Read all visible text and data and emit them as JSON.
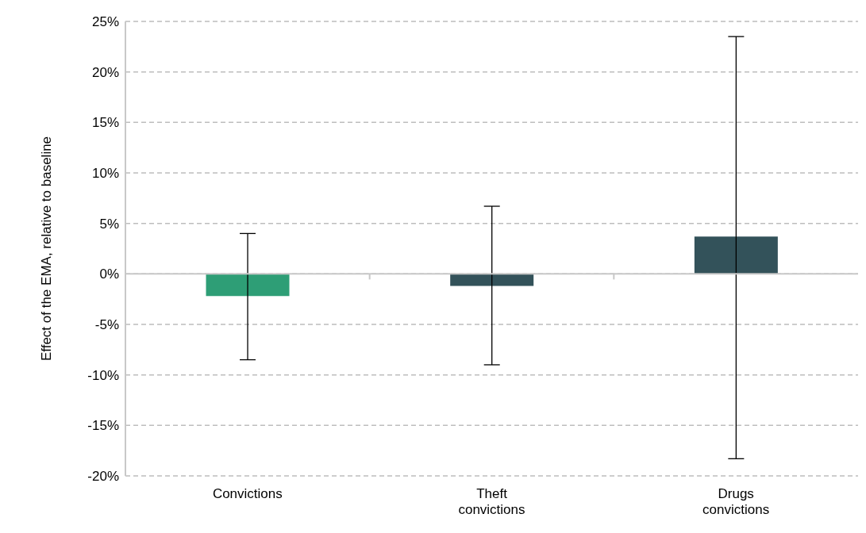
{
  "chart_data": {
    "type": "bar",
    "ylabel": "Effect of the EMA, relative to baseline",
    "categories": [
      "Convictions",
      "Theft convictions",
      "Drugs convictions"
    ],
    "values": [
      -2.2,
      -1.2,
      3.7
    ],
    "colors": [
      "#2e9e76",
      "#33525a",
      "#33525a"
    ],
    "errors": [
      [
        -8.5,
        4.0
      ],
      [
        -9.0,
        6.7
      ],
      [
        -18.3,
        23.5
      ]
    ],
    "ylim": [
      -20,
      25
    ],
    "yticks": [
      {
        "value": -20,
        "label": "-20%"
      },
      {
        "value": -15,
        "label": "-15%"
      },
      {
        "value": -10,
        "label": "-10%"
      },
      {
        "value": -5,
        "label": "-5%"
      },
      {
        "value": 0,
        "label": "0%"
      },
      {
        "value": 5,
        "label": "5%"
      },
      {
        "value": 10,
        "label": "10%"
      },
      {
        "value": 15,
        "label": "15%"
      },
      {
        "value": 20,
        "label": "20%"
      },
      {
        "value": 25,
        "label": "25%"
      }
    ],
    "grid": "y",
    "legend": false
  }
}
